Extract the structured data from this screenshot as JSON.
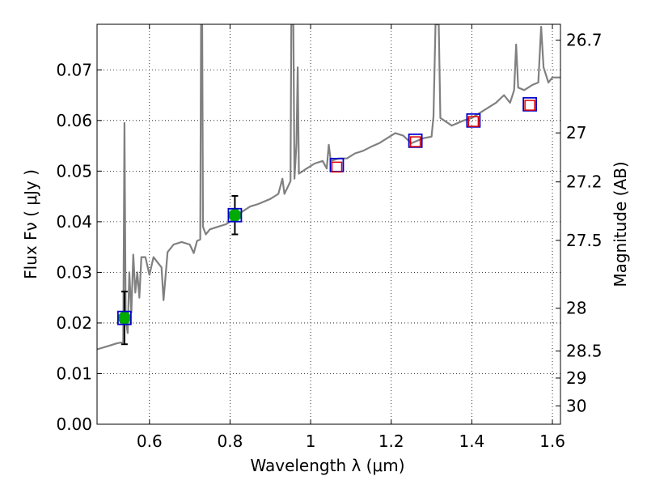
{
  "chart_data": {
    "type": "scatter",
    "xlabel": "Wavelength  λ (μm)",
    "ylabel_left": "Flux  Fν ( μJy )",
    "ylabel_right": "Magnitude (AB)",
    "xlim": [
      0.47,
      1.62
    ],
    "ylim": [
      0.0,
      0.079
    ],
    "grid": true,
    "x_ticks": [
      0.6,
      0.8,
      1.0,
      1.2,
      1.4,
      1.6
    ],
    "x_tick_labels": [
      "0.6",
      "0.8",
      "1",
      "1.2",
      "1.4",
      "1.6"
    ],
    "y_ticks": [
      0.0,
      0.01,
      0.02,
      0.03,
      0.04,
      0.05,
      0.06,
      0.07
    ],
    "y_tick_labels": [
      "0.00",
      "0.01",
      "0.02",
      "0.03",
      "0.04",
      "0.05",
      "0.06",
      "0.07"
    ],
    "right_ticks": [
      26.7,
      27.0,
      27.2,
      27.5,
      28.0,
      28.5,
      29.0,
      30.0
    ],
    "right_tick_labels": [
      "26.7",
      "27",
      "27.2",
      "27.5",
      "28",
      "28.5",
      "29",
      "30"
    ],
    "colors": {
      "spectrum": "#808080",
      "detected": "#00aa00",
      "band": "#0000cc",
      "model": "#dd0000",
      "error": "#000000"
    },
    "spectrum": [
      [
        0.47,
        0.0148
      ],
      [
        0.5,
        0.0155
      ],
      [
        0.52,
        0.016
      ],
      [
        0.535,
        0.0162
      ],
      [
        0.538,
        0.0595
      ],
      [
        0.541,
        0.021
      ],
      [
        0.546,
        0.018
      ],
      [
        0.55,
        0.03
      ],
      [
        0.555,
        0.022
      ],
      [
        0.56,
        0.0335
      ],
      [
        0.565,
        0.026
      ],
      [
        0.57,
        0.03
      ],
      [
        0.575,
        0.025
      ],
      [
        0.58,
        0.033
      ],
      [
        0.59,
        0.033
      ],
      [
        0.6,
        0.0295
      ],
      [
        0.61,
        0.033
      ],
      [
        0.62,
        0.032
      ],
      [
        0.63,
        0.031
      ],
      [
        0.635,
        0.0245
      ],
      [
        0.645,
        0.034
      ],
      [
        0.66,
        0.0355
      ],
      [
        0.68,
        0.036
      ],
      [
        0.7,
        0.0355
      ],
      [
        0.71,
        0.0338
      ],
      [
        0.718,
        0.0362
      ],
      [
        0.726,
        0.0365
      ],
      [
        0.728,
        0.079
      ],
      [
        0.731,
        0.079
      ],
      [
        0.733,
        0.039
      ],
      [
        0.74,
        0.0375
      ],
      [
        0.75,
        0.0385
      ],
      [
        0.77,
        0.039
      ],
      [
        0.79,
        0.0395
      ],
      [
        0.81,
        0.0405
      ],
      [
        0.83,
        0.042
      ],
      [
        0.85,
        0.043
      ],
      [
        0.87,
        0.0435
      ],
      [
        0.9,
        0.0445
      ],
      [
        0.92,
        0.0455
      ],
      [
        0.93,
        0.0485
      ],
      [
        0.935,
        0.0455
      ],
      [
        0.95,
        0.048
      ],
      [
        0.952,
        0.079
      ],
      [
        0.957,
        0.079
      ],
      [
        0.96,
        0.0485
      ],
      [
        0.965,
        0.0555
      ],
      [
        0.968,
        0.0705
      ],
      [
        0.971,
        0.0495
      ],
      [
        0.99,
        0.0505
      ],
      [
        1.01,
        0.0515
      ],
      [
        1.03,
        0.052
      ],
      [
        1.04,
        0.0505
      ],
      [
        1.045,
        0.0552
      ],
      [
        1.05,
        0.052
      ],
      [
        1.07,
        0.0525
      ],
      [
        1.09,
        0.0525
      ],
      [
        1.11,
        0.0535
      ],
      [
        1.13,
        0.054
      ],
      [
        1.15,
        0.0548
      ],
      [
        1.17,
        0.0555
      ],
      [
        1.19,
        0.0565
      ],
      [
        1.21,
        0.0575
      ],
      [
        1.23,
        0.057
      ],
      [
        1.25,
        0.0555
      ],
      [
        1.28,
        0.0565
      ],
      [
        1.3,
        0.0568
      ],
      [
        1.305,
        0.0608
      ],
      [
        1.31,
        0.079
      ],
      [
        1.318,
        0.079
      ],
      [
        1.322,
        0.0605
      ],
      [
        1.35,
        0.059
      ],
      [
        1.38,
        0.06
      ],
      [
        1.4,
        0.0605
      ],
      [
        1.42,
        0.0615
      ],
      [
        1.44,
        0.0625
      ],
      [
        1.46,
        0.0635
      ],
      [
        1.48,
        0.065
      ],
      [
        1.495,
        0.0635
      ],
      [
        1.505,
        0.066
      ],
      [
        1.51,
        0.075
      ],
      [
        1.515,
        0.0665
      ],
      [
        1.53,
        0.066
      ],
      [
        1.54,
        0.0665
      ],
      [
        1.55,
        0.067
      ],
      [
        1.565,
        0.0675
      ],
      [
        1.572,
        0.0785
      ],
      [
        1.578,
        0.0705
      ],
      [
        1.59,
        0.0675
      ],
      [
        1.6,
        0.0685
      ],
      [
        1.62,
        0.0685
      ]
    ],
    "band_points": [
      {
        "x": 0.538,
        "y": 0.021
      },
      {
        "x": 0.812,
        "y": 0.0413
      },
      {
        "x": 1.065,
        "y": 0.0512
      },
      {
        "x": 1.26,
        "y": 0.056
      },
      {
        "x": 1.404,
        "y": 0.06
      },
      {
        "x": 1.544,
        "y": 0.0632
      }
    ],
    "model_points": [
      {
        "x": 1.065,
        "y": 0.0508
      },
      {
        "x": 1.26,
        "y": 0.0558
      },
      {
        "x": 1.404,
        "y": 0.0598
      },
      {
        "x": 1.544,
        "y": 0.063
      }
    ],
    "detections": [
      {
        "x": 0.538,
        "y": 0.021,
        "yerr_low": 0.0158,
        "yerr_high": 0.0262
      },
      {
        "x": 0.812,
        "y": 0.0413,
        "yerr_low": 0.0375,
        "yerr_high": 0.0451
      }
    ]
  }
}
